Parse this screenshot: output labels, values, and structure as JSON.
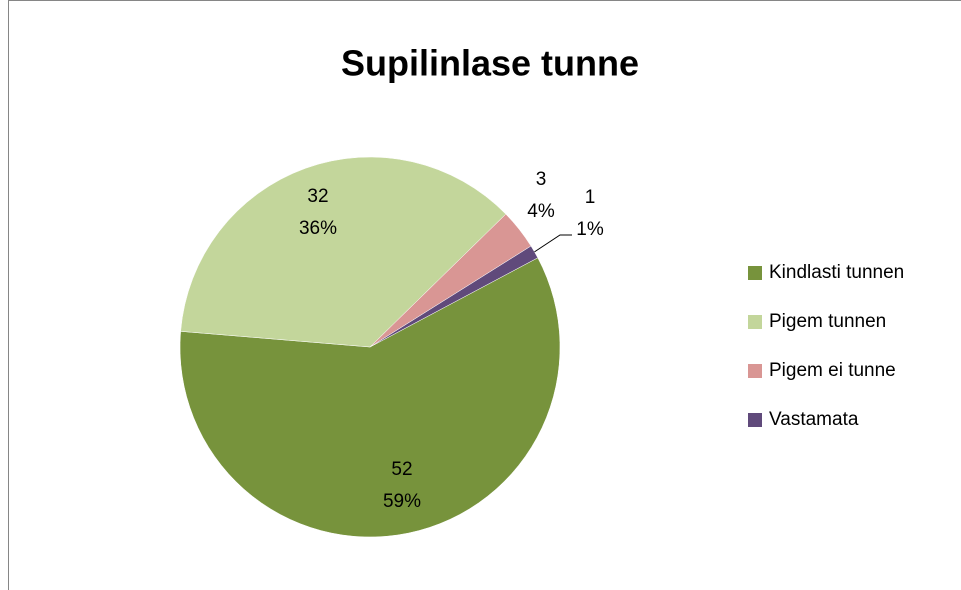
{
  "chart_data": {
    "type": "pie",
    "title": "Supilinlase tunne",
    "categories": [
      "Kindlasti tunnen",
      "Pigem tunnen",
      "Pigem ei tunne",
      "Vastamata"
    ],
    "values": [
      52,
      32,
      3,
      1
    ],
    "percent_labels": [
      "59%",
      "36%",
      "4%",
      "1%"
    ],
    "colors": [
      "#77933c",
      "#c3d69b",
      "#d99694",
      "#604a7b"
    ],
    "legend": "right"
  }
}
